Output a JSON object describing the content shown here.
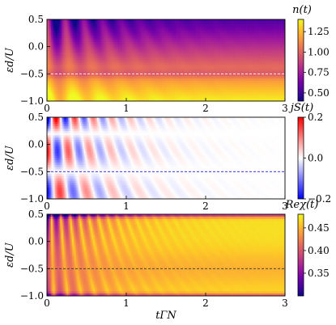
{
  "chart_data": [
    {
      "type": "heatmap",
      "panel": "top",
      "quantity": "n(t)",
      "colorbar_label": "n(t)",
      "colormap": "plasma",
      "x_range": [
        0,
        3
      ],
      "y_range": [
        -1.0,
        0.5
      ],
      "ylabel": "εd/U",
      "xlabel": "",
      "xticks": [
        "0",
        "1",
        "2",
        "3"
      ],
      "yticks": [
        "0.5",
        "0.0",
        "−0.5",
        "−1.0"
      ],
      "color_range": [
        0.4,
        1.4
      ],
      "colorbar_ticks": [
        "1.25",
        "1.00",
        "0.75",
        "0.50"
      ],
      "colorbar_tick_values": [
        1.25,
        1.0,
        0.75,
        0.5
      ],
      "dashed_line_y": -0.5,
      "dashed_line_color": "#ffffff"
    },
    {
      "type": "heatmap",
      "panel": "middle",
      "quantity": "jS(t)",
      "colorbar_label": "jS(t)",
      "colormap": "bwr",
      "x_range": [
        0,
        3
      ],
      "y_range": [
        -1.0,
        0.5
      ],
      "ylabel": "εd/U",
      "xlabel": "",
      "xticks": [
        "0",
        "1",
        "2",
        "3"
      ],
      "yticks": [
        "0.5",
        "0.0",
        "−0.5",
        "−1.0"
      ],
      "color_range": [
        -0.2,
        0.2
      ],
      "colorbar_ticks": [
        "0.2",
        "0.0",
        "−0.2"
      ],
      "colorbar_tick_values": [
        0.2,
        0.0,
        -0.2
      ],
      "dashed_line_y": -0.5,
      "dashed_line_color": "#1a1aff"
    },
    {
      "type": "heatmap",
      "panel": "bottom",
      "quantity": "Reχ(t)",
      "colorbar_label": "Reχ(t)",
      "colormap": "plasma",
      "x_range": [
        0,
        3
      ],
      "y_range": [
        -1.0,
        0.5
      ],
      "ylabel": "εd/U",
      "xlabel": "tΓN",
      "xticks": [
        "0",
        "1",
        "2",
        "3"
      ],
      "yticks": [
        "0.5",
        "0.0",
        "−0.5",
        "−1.0"
      ],
      "color_range": [
        0.3,
        0.48
      ],
      "colorbar_ticks": [
        "0.45",
        "0.40",
        "0.35"
      ],
      "colorbar_tick_values": [
        0.45,
        0.4,
        0.35
      ],
      "dashed_line_y": -0.5,
      "dashed_line_color": "#333333"
    }
  ]
}
